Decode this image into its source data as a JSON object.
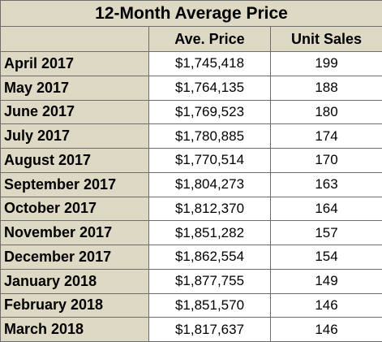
{
  "title": "12-Month Average Price",
  "columns": {
    "blank": "",
    "avg_price": "Ave. Price",
    "unit_sales": "Unit Sales"
  },
  "rows": [
    {
      "month": "April 2017",
      "price": "$1,745,418",
      "sales": "199"
    },
    {
      "month": "May 2017",
      "price": "$1,764,135",
      "sales": "188"
    },
    {
      "month": "June 2017",
      "price": "$1,769,523",
      "sales": "180"
    },
    {
      "month": "July 2017",
      "price": "$1,780,885",
      "sales": "174"
    },
    {
      "month": "August 2017",
      "price": "$1,770,514",
      "sales": "170"
    },
    {
      "month": "September 2017",
      "price": "$1,804,273",
      "sales": "163"
    },
    {
      "month": "October 2017",
      "price": "$1,812,370",
      "sales": "164"
    },
    {
      "month": "November 2017",
      "price": "$1,851,282",
      "sales": "157"
    },
    {
      "month": "December 2017",
      "price": "$1,862,554",
      "sales": "154"
    },
    {
      "month": "January 2018",
      "price": "$1,877,755",
      "sales": "149"
    },
    {
      "month": "February 2018",
      "price": "$1,851,570",
      "sales": "146"
    },
    {
      "month": "March 2018",
      "price": "$1,817,637",
      "sales": "146"
    }
  ],
  "colors": {
    "header_bg": "#ddd9c4",
    "cell_bg": "#ffffff",
    "border": "#6d6d6d"
  }
}
